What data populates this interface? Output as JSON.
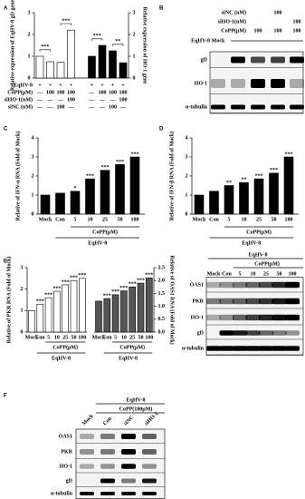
{
  "panel_labels": [
    "A",
    "B",
    "C",
    "D",
    "E",
    "F"
  ],
  "chart_data": [
    {
      "type": "bar",
      "ylabel": "Relative expression of EqHV-8 gD gene",
      "y2label": "Relative expression of HO-1 gene",
      "ylim": [
        0,
        3
      ],
      "yticks": [
        0,
        1,
        2,
        3
      ],
      "y2lim": [
        0,
        3
      ],
      "y2ticks": [
        0,
        1,
        2,
        3
      ],
      "series": [
        {
          "color": "#ffffff",
          "values": [
            1.0,
            0.75,
            0.72,
            2.2,
            null,
            null,
            null,
            null
          ]
        },
        {
          "color": "#000000",
          "axis": "y2",
          "values": [
            null,
            null,
            null,
            null,
            1.0,
            1.5,
            1.25,
            0.7
          ]
        }
      ],
      "annotations": [
        "***",
        "***",
        "***",
        "**"
      ],
      "conditions": [
        {
          "label": "EqHV-8",
          "values": [
            "+",
            "+",
            "+",
            "+",
            "+",
            "+",
            "+",
            "+"
          ]
        },
        {
          "label": "CoPP(μM)",
          "values": [
            "—",
            "100",
            "100",
            "100",
            "—",
            "100",
            "100",
            "100"
          ]
        },
        {
          "label": "siHO-1(nM)",
          "values": [
            "—",
            "—",
            "—",
            "100",
            "—",
            "—",
            "—",
            "100"
          ]
        },
        {
          "label": "siNC (nM)",
          "values": [
            "—",
            "—",
            "100",
            "—",
            "—",
            "—",
            "100",
            "—"
          ]
        }
      ]
    },
    {
      "type": "bar",
      "ylabel": "Relative of IFN-α RNA (Fold of Mock)",
      "categories": [
        "Mock",
        "Con",
        "5",
        "10",
        "25",
        "50",
        "100"
      ],
      "values": [
        1.0,
        1.1,
        1.2,
        1.85,
        2.3,
        2.6,
        3.0
      ],
      "color": "#000000",
      "significance": [
        null,
        null,
        "*",
        "***",
        "***",
        "***",
        "***"
      ],
      "ylim": [
        0,
        4
      ],
      "yticks": [
        0,
        1,
        2,
        3,
        4
      ],
      "xlabel_groups": [
        "CoPP(μM)",
        "EqHV-8"
      ]
    },
    {
      "type": "bar",
      "ylabel": "Relative of IFN-β RNA (Fold of Mock)",
      "categories": [
        "Mock",
        "Con",
        "5",
        "10",
        "25",
        "50",
        "100"
      ],
      "values": [
        1.0,
        1.2,
        1.5,
        1.65,
        1.85,
        2.15,
        3.0
      ],
      "color": "#000000",
      "significance": [
        null,
        null,
        "**",
        "**",
        "***",
        "***",
        "***"
      ],
      "ylim": [
        0,
        4
      ],
      "yticks": [
        0,
        1,
        2,
        3,
        4
      ],
      "xlabel_groups": [
        "CoPP(μM)",
        "EqHV-8"
      ]
    },
    {
      "type": "bar",
      "ylabel": "Relative of PKR RNA (Fold of Mock)",
      "categories": [
        "Mock",
        "Con",
        "5",
        "10",
        "25",
        "50",
        "100"
      ],
      "values": [
        1.0,
        1.3,
        1.6,
        1.9,
        2.2,
        2.4,
        2.5
      ],
      "color": "#ffffff",
      "significance": [
        null,
        "***",
        "***",
        "***",
        "***",
        "***",
        "***"
      ],
      "ylim": [
        0,
        3
      ],
      "yticks": [
        0,
        1,
        2,
        3
      ],
      "xlabel_groups": [
        "CoPP(μM)",
        "EqHV-8"
      ]
    },
    {
      "type": "bar",
      "y2label": "Relative of OAS1 RNA (Fold of Mock)",
      "categories": [
        "Mock",
        "Con",
        "5",
        "10",
        "25",
        "50",
        "100"
      ],
      "series": [
        {
          "color": "#555555",
          "axis": "y2",
          "values": [
            1.2,
            1.3,
            1.45,
            1.6,
            1.75,
            1.9,
            2.1
          ]
        }
      ],
      "significance": [
        null,
        "***",
        "***",
        "***",
        "***",
        "***",
        "***"
      ],
      "y2lim": [
        0,
        2.5
      ],
      "y2ticks": [
        {
          "value": 0,
          "label": "0.0"
        },
        0.5,
        {
          "value": 1,
          "label": "1.0"
        },
        1.5,
        {
          "value": 2,
          "label": "2.0"
        },
        2.5
      ],
      "xlabel_groups": [
        "CoPP(μM)",
        "EqHV-8"
      ]
    }
  ],
  "blot_B": {
    "conditions": [
      {
        "label": "siNC (nM)",
        "values": [
          null,
          null,
          null,
          "100",
          null
        ]
      },
      {
        "label": "siHO-1(nM)",
        "values": [
          null,
          null,
          null,
          null,
          "100"
        ]
      },
      {
        "label": "CoPP(μM)",
        "values": [
          null,
          null,
          "100",
          "100",
          "100"
        ]
      }
    ],
    "virus": "EqHV-8",
    "mock": "Mock",
    "rows": [
      "gD",
      "HO-1",
      "α-tubulin"
    ]
  },
  "blot_E": {
    "virus": "EqHV-8",
    "treatment": "CoPP(μM)",
    "lanes": [
      "Mock",
      "Con",
      "5",
      "10",
      "25",
      "50",
      "100"
    ],
    "rows": [
      "OAS1",
      "PKR",
      "HO-1",
      "gD",
      "α-tubulin"
    ]
  },
  "blot_F": {
    "virus": "EqHV-8",
    "treatment": "CoPP(100μM)",
    "lanes": [
      "Mock",
      "Con",
      "siNC",
      "siHO-1"
    ],
    "rows": [
      "OAS1",
      "PKR",
      "HO-1",
      "gD",
      "α-tubulin"
    ]
  }
}
